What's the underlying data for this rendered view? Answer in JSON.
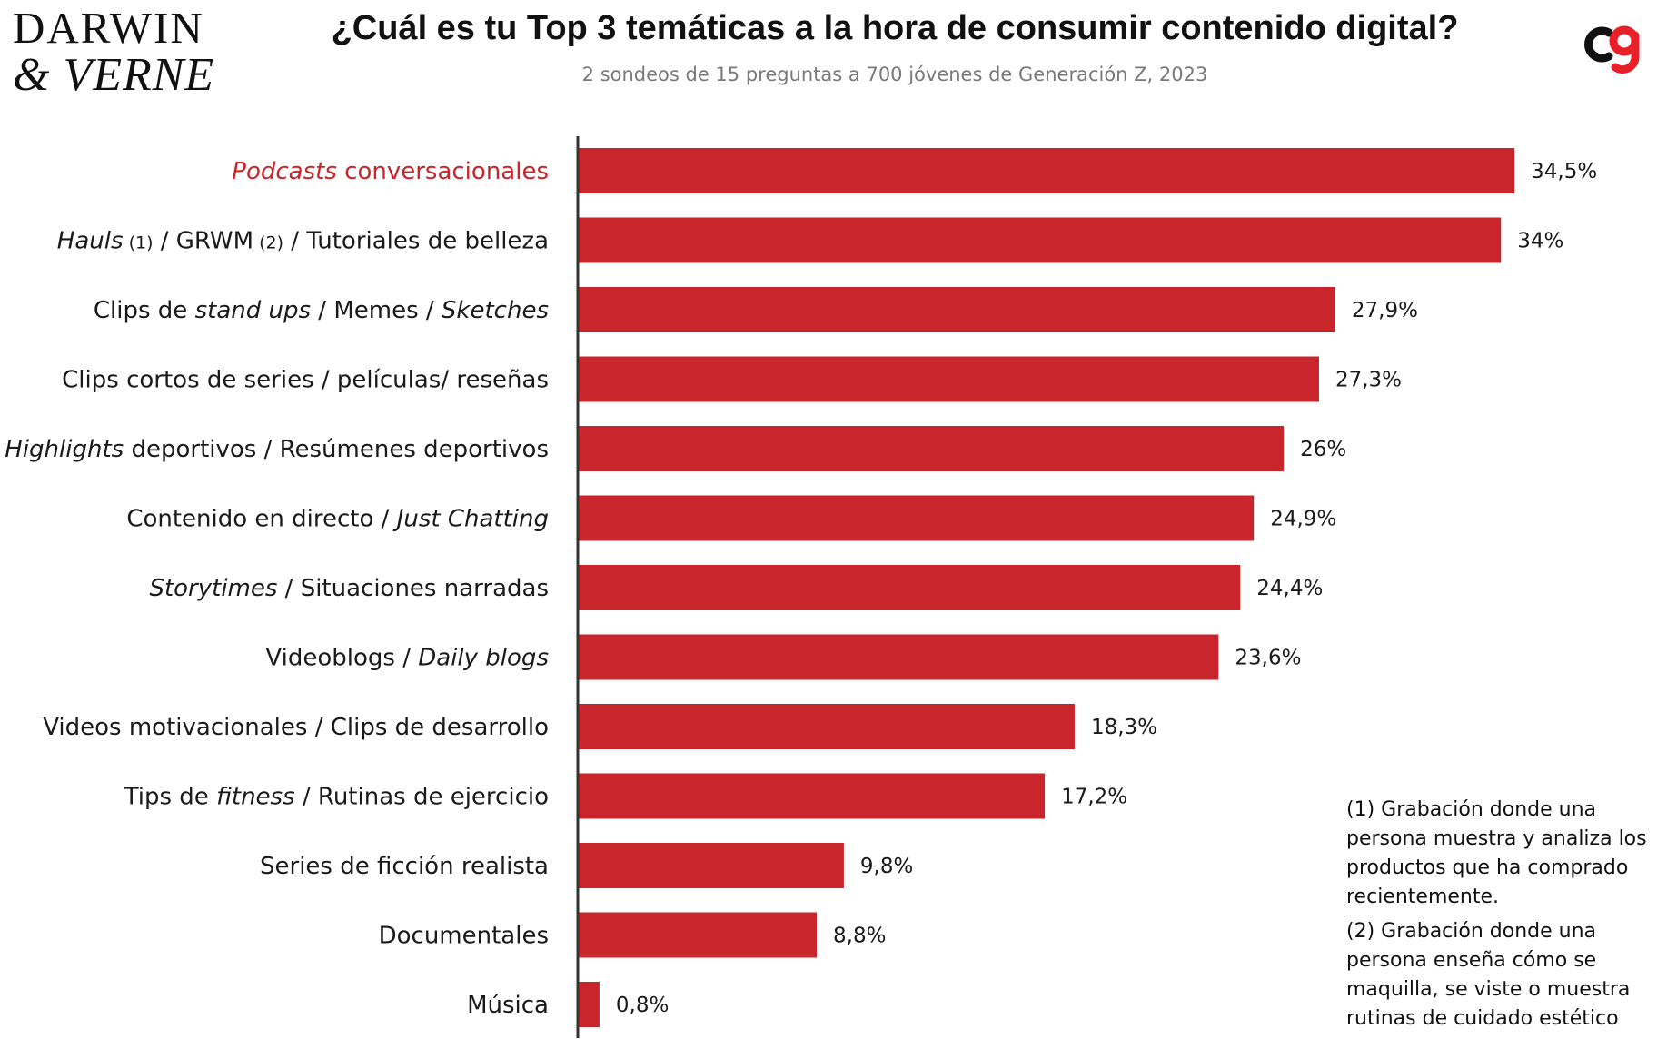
{
  "brand": {
    "line1": "DARWIN",
    "line2": "& VERNE"
  },
  "chart_data": {
    "type": "bar",
    "orientation": "horizontal",
    "title": "¿Cuál es tu Top 3 temáticas a la hora de consumir contenido digital?",
    "subtitle": "2 sondeos de 15 preguntas a 700 jóvenes de Generación Z, 2023",
    "categories": [
      "Podcasts conversacionales",
      "Hauls (1) / GRWM (2) / Tutoriales de belleza",
      "Clips de stand ups / Memes / Sketches",
      "Clips cortos de series / películas/ reseñas",
      "Highlights deportivos / Resúmenes deportivos",
      "Contenido en directo / Just Chatting",
      "Storytimes / Situaciones narradas",
      "Videoblogs / Daily blogs",
      "Videos motivacionales / Clips de desarrollo",
      "Tips de fitness / Rutinas de ejercicio",
      "Series de ficción realista",
      "Documentales",
      "Música"
    ],
    "label_parts": [
      [
        {
          "t": "Podcasts",
          "i": true
        },
        {
          "t": " conversacionales"
        }
      ],
      [
        {
          "t": "Hauls",
          "i": true
        },
        {
          "t": " (1)",
          "s": true
        },
        {
          "t": " / GRWM"
        },
        {
          "t": " (2)",
          "s": true
        },
        {
          "t": " / Tutoriales de belleza"
        }
      ],
      [
        {
          "t": "Clips de "
        },
        {
          "t": "stand ups",
          "i": true
        },
        {
          "t": " / Memes / "
        },
        {
          "t": "Sketches",
          "i": true
        }
      ],
      [
        {
          "t": "Clips cortos de series / películas/ reseñas"
        }
      ],
      [
        {
          "t": "Highlights",
          "i": true
        },
        {
          "t": " deportivos / Resúmenes deportivos"
        }
      ],
      [
        {
          "t": "Contenido en directo / "
        },
        {
          "t": "Just Chatting",
          "i": true
        }
      ],
      [
        {
          "t": "Storytimes",
          "i": true
        },
        {
          "t": " / Situaciones narradas"
        }
      ],
      [
        {
          "t": "Videoblogs / "
        },
        {
          "t": "Daily blogs",
          "i": true
        }
      ],
      [
        {
          "t": "Videos motivacionales / Clips de desarrollo"
        }
      ],
      [
        {
          "t": "Tips de "
        },
        {
          "t": "fitness",
          "i": true
        },
        {
          "t": " / Rutinas de ejercicio"
        }
      ],
      [
        {
          "t": "Series de ficción realista"
        }
      ],
      [
        {
          "t": "Documentales"
        }
      ],
      [
        {
          "t": "Música"
        }
      ]
    ],
    "values": [
      34.5,
      34,
      27.9,
      27.3,
      26,
      24.9,
      24.4,
      23.6,
      18.3,
      17.2,
      9.8,
      8.8,
      0.8
    ],
    "value_labels": [
      "34,5%",
      "34%",
      "27,9%",
      "27,3%",
      "26%",
      "24,9%",
      "24,4%",
      "23,6%",
      "18,3%",
      "17,2%",
      "9,8%",
      "8,8%",
      "0,8%"
    ],
    "highlight_index": 0,
    "bar_color": "#c8262b",
    "highlight_label_color": "#c8262b",
    "unit": "%",
    "xlim": [
      0,
      36
    ],
    "grid": false,
    "legend": "none"
  },
  "notes": [
    "(1) Grabación donde una persona muestra y analiza los productos que ha comprado recientemente.",
    "(2) Grabación donde una persona enseña cómo se maquilla, se viste o muestra rutinas de cuidado estético"
  ],
  "logo_icon": "cg-monogram-icon",
  "colors": {
    "accent": "#c8262b",
    "subtitle": "#7a7a7a",
    "axis": "#333333"
  }
}
